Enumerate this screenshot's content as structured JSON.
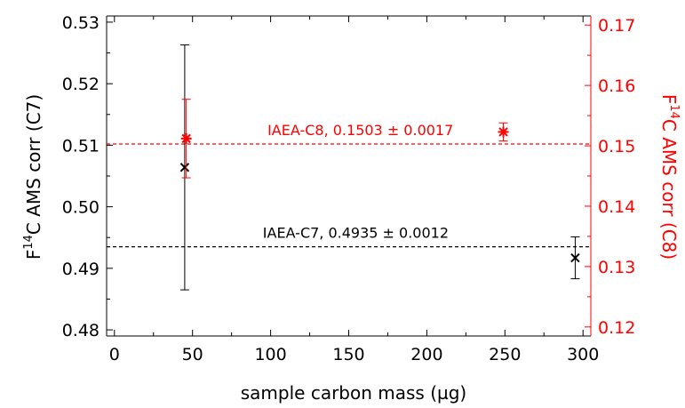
{
  "chart_data": {
    "type": "scatter",
    "xlabel": "sample carbon mass (µg)",
    "ylabel_left": {
      "prefix": "F",
      "sup": "14",
      "suffix": "C AMS corr (C7)"
    },
    "ylabel_right": {
      "prefix": "F",
      "sup": "14",
      "suffix": "C AMS corr (C8)"
    },
    "xlim": [
      -5,
      305
    ],
    "ylim_left": [
      0.479,
      0.531
    ],
    "ylim_right": [
      0.1185,
      0.1715
    ],
    "x_ticks": [
      0,
      50,
      100,
      150,
      200,
      250,
      300
    ],
    "y_left_ticks": [
      "0.48",
      "0.49",
      "0.50",
      "0.51",
      "0.52",
      "0.53"
    ],
    "y_right_ticks": [
      "0.12",
      "0.13",
      "0.14",
      "0.15",
      "0.16",
      "0.17"
    ],
    "colors": {
      "C7": "#000000",
      "C8": "#ff0000"
    },
    "series": [
      {
        "key": "C7",
        "axis": "left",
        "marker": "x",
        "points": [
          {
            "x": 45,
            "y": 0.5064,
            "err": 0.0199
          },
          {
            "x": 295,
            "y": 0.4917,
            "err": 0.0034
          }
        ],
        "reference": {
          "value": 0.4935,
          "label": "IAEA-C7, 0.4935 ± 0.0012",
          "label_x": 95
        }
      },
      {
        "key": "C8",
        "axis": "right",
        "marker": "asterisk",
        "points": [
          {
            "x": 46,
            "y": 0.1512,
            "err": 0.0065
          },
          {
            "x": 249,
            "y": 0.1523,
            "err": 0.0015
          }
        ],
        "reference": {
          "value": 0.1503,
          "label": "IAEA-C8, 0.1503 ± 0.0017",
          "label_x": 98
        }
      }
    ]
  }
}
